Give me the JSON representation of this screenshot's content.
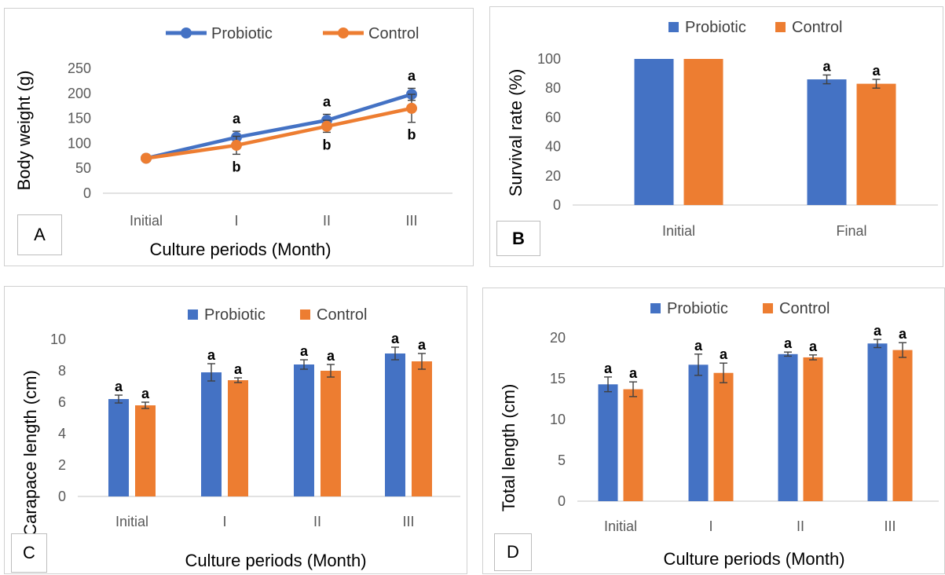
{
  "colors": {
    "probiotic": "#4472c4",
    "control": "#ed7d31",
    "axis": "#d9d9d9",
    "errorbar": "#404040"
  },
  "chart_data": [
    {
      "id": "A",
      "type": "line",
      "panel_label": "A",
      "xlabel": "Culture periods (Month)",
      "ylabel": "Body weight (g)",
      "categories": [
        "Initial",
        "I",
        "II",
        "III"
      ],
      "ylim": [
        0,
        250
      ],
      "yticks": [
        0,
        50,
        100,
        150,
        200,
        250
      ],
      "legend_position": "top-center",
      "grid": false,
      "series": [
        {
          "name": "Probiotic",
          "color_key": "probiotic",
          "values": [
            70,
            112,
            146,
            198
          ],
          "errors": [
            3,
            12,
            12,
            12
          ],
          "labels": [
            "",
            "a",
            "a",
            "a"
          ]
        },
        {
          "name": "Control",
          "color_key": "control",
          "values": [
            70,
            96,
            134,
            170
          ],
          "errors": [
            3,
            18,
            12,
            28
          ],
          "labels": [
            "",
            "b",
            "b",
            "b"
          ]
        }
      ]
    },
    {
      "id": "B",
      "type": "bar",
      "panel_label": "B",
      "xlabel": "",
      "ylabel": "Survival rate (%)",
      "categories": [
        "Initial",
        "Final"
      ],
      "ylim": [
        0,
        100
      ],
      "yticks": [
        0,
        20,
        40,
        60,
        80,
        100
      ],
      "legend_position": "top-center",
      "grid": false,
      "series": [
        {
          "name": "Probiotic",
          "color_key": "probiotic",
          "values": [
            100,
            86
          ],
          "errors": [
            0,
            3
          ],
          "labels": [
            "",
            "a"
          ]
        },
        {
          "name": "Control",
          "color_key": "control",
          "values": [
            100,
            83
          ],
          "errors": [
            0,
            3
          ],
          "labels": [
            "",
            "a"
          ]
        }
      ]
    },
    {
      "id": "C",
      "type": "bar",
      "panel_label": "C",
      "xlabel": "Culture periods (Month)",
      "ylabel": "Carapace length (cm)",
      "categories": [
        "Initial",
        "I",
        "II",
        "III"
      ],
      "ylim": [
        0,
        10
      ],
      "yticks": [
        0,
        2,
        4,
        6,
        8,
        10
      ],
      "legend_position": "top-center",
      "grid": false,
      "series": [
        {
          "name": "Probiotic",
          "color_key": "probiotic",
          "values": [
            6.2,
            7.9,
            8.4,
            9.1
          ],
          "errors": [
            0.25,
            0.55,
            0.3,
            0.4
          ],
          "labels": [
            "a",
            "a",
            "a",
            "a"
          ]
        },
        {
          "name": "Control",
          "color_key": "control",
          "values": [
            5.8,
            7.4,
            8.0,
            8.6
          ],
          "errors": [
            0.2,
            0.15,
            0.4,
            0.5
          ],
          "labels": [
            "a",
            "a",
            "a",
            "a"
          ]
        }
      ]
    },
    {
      "id": "D",
      "type": "bar",
      "panel_label": "D",
      "xlabel": "Culture periods (Month)",
      "ylabel": "Total length (cm)",
      "categories": [
        "Initial",
        "I",
        "II",
        "III"
      ],
      "ylim": [
        0,
        20
      ],
      "yticks": [
        0,
        5,
        10,
        15,
        20
      ],
      "legend_position": "top-center",
      "grid": false,
      "series": [
        {
          "name": "Probiotic",
          "color_key": "probiotic",
          "values": [
            14.3,
            16.7,
            18.0,
            19.3
          ],
          "errors": [
            0.9,
            1.3,
            0.25,
            0.5
          ],
          "labels": [
            "a",
            "a",
            "a",
            "a"
          ]
        },
        {
          "name": "Control",
          "color_key": "control",
          "values": [
            13.7,
            15.7,
            17.6,
            18.5
          ],
          "errors": [
            0.9,
            1.2,
            0.3,
            0.9
          ],
          "labels": [
            "a",
            "a",
            "a",
            "a"
          ]
        }
      ]
    }
  ]
}
